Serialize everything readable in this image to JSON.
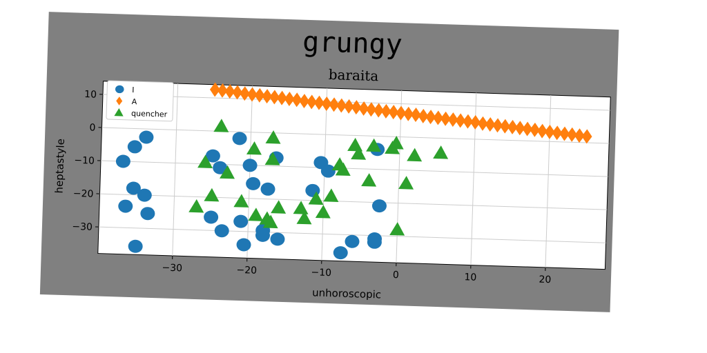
{
  "chart_data": {
    "type": "scatter",
    "title": "grungy",
    "subtitle": "baraita",
    "xlabel": "unhoroscopic",
    "ylabel": "heptastyle",
    "xlim": [
      -40,
      28
    ],
    "ylim": [
      -38,
      14
    ],
    "xticks": [
      -30,
      -20,
      -10,
      0,
      10,
      20
    ],
    "yticks": [
      10,
      0,
      -10,
      -20,
      -30
    ],
    "grid": true,
    "legend_position": "top-left",
    "colors": {
      "figure_background": "#808080",
      "plot_background": "#ffffff",
      "grid": "#cccccc"
    },
    "series": [
      {
        "name": "I",
        "marker": "circle",
        "color": "#1f77b4",
        "points": [
          [
            -37,
            -10
          ],
          [
            -35.5,
            -5.5
          ],
          [
            -34,
            -2.5
          ],
          [
            -35.5,
            -18
          ],
          [
            -34,
            -20
          ],
          [
            -36.5,
            -23.5
          ],
          [
            -33.5,
            -25.5
          ],
          [
            -35,
            -35.5
          ],
          [
            -25,
            -7.5
          ],
          [
            -24,
            -11
          ],
          [
            -25,
            -26
          ],
          [
            -23.5,
            -30
          ],
          [
            -21.5,
            -2
          ],
          [
            -20,
            -10
          ],
          [
            -19.5,
            -15.5
          ],
          [
            -21,
            -27
          ],
          [
            -20.5,
            -34
          ],
          [
            -17.5,
            -17
          ],
          [
            -18,
            -29.5
          ],
          [
            -18,
            -31
          ],
          [
            -16.5,
            -7.5
          ],
          [
            -16,
            -32
          ],
          [
            -10.5,
            -8.5
          ],
          [
            -11.5,
            -17
          ],
          [
            -9.5,
            -11
          ],
          [
            -6,
            -32
          ],
          [
            -7.5,
            -35.5
          ],
          [
            -3,
            -32
          ],
          [
            -3,
            -31
          ],
          [
            -3,
            -4
          ],
          [
            -2.5,
            -21
          ]
        ]
      },
      {
        "name": "A",
        "marker": "diamond",
        "color": "#ff7f0e",
        "points": [
          [
            -25,
            12.5
          ],
          [
            -24,
            12.3
          ],
          [
            -23,
            12.1
          ],
          [
            -22,
            11.9
          ],
          [
            -21,
            11.6
          ],
          [
            -20,
            11.4
          ],
          [
            -19,
            11.2
          ],
          [
            -18,
            11.0
          ],
          [
            -17,
            10.8
          ],
          [
            -16,
            10.6
          ],
          [
            -15,
            10.4
          ],
          [
            -14,
            10.2
          ],
          [
            -13,
            9.9
          ],
          [
            -12,
            9.7
          ],
          [
            -11,
            9.5
          ],
          [
            -10,
            9.3
          ],
          [
            -9,
            9.1
          ],
          [
            -8,
            8.9
          ],
          [
            -7,
            8.7
          ],
          [
            -6,
            8.5
          ],
          [
            -5,
            8.2
          ],
          [
            -4,
            8.0
          ],
          [
            -3,
            7.8
          ],
          [
            -2,
            7.6
          ],
          [
            -1,
            7.4
          ],
          [
            0,
            7.2
          ],
          [
            1,
            7.0
          ],
          [
            2,
            6.8
          ],
          [
            3,
            6.5
          ],
          [
            4,
            6.3
          ],
          [
            5,
            6.1
          ],
          [
            6,
            5.9
          ],
          [
            7,
            5.7
          ],
          [
            8,
            5.5
          ],
          [
            9,
            5.3
          ],
          [
            10,
            5.1
          ],
          [
            11,
            4.8
          ],
          [
            12,
            4.6
          ],
          [
            13,
            4.4
          ],
          [
            14,
            4.2
          ],
          [
            15,
            4.0
          ],
          [
            16,
            3.8
          ],
          [
            17,
            3.6
          ],
          [
            18,
            3.4
          ],
          [
            19,
            3.1
          ],
          [
            20,
            2.9
          ],
          [
            21,
            2.7
          ],
          [
            22,
            2.5
          ],
          [
            23,
            2.3
          ],
          [
            24,
            2.1
          ],
          [
            25,
            1.9
          ]
        ]
      },
      {
        "name": "quencher",
        "marker": "triangle",
        "color": "#2ca02c",
        "points": [
          [
            -24,
            1.5
          ],
          [
            -26,
            -9.5
          ],
          [
            -25,
            -19.5
          ],
          [
            -27,
            -23
          ],
          [
            -23,
            -12.5
          ],
          [
            -19.5,
            -5
          ],
          [
            -21,
            -21
          ],
          [
            -19,
            -25
          ],
          [
            -17,
            -1.5
          ],
          [
            -17,
            -8
          ],
          [
            -17.5,
            -26
          ],
          [
            -17,
            -27
          ],
          [
            -16,
            -22.5
          ],
          [
            -13,
            -22.5
          ],
          [
            -12.5,
            -25.5
          ],
          [
            -11,
            -19.5
          ],
          [
            -10,
            -23.5
          ],
          [
            -9,
            -18.5
          ],
          [
            -8,
            -9
          ],
          [
            -7.5,
            -10.5
          ],
          [
            -6,
            -3
          ],
          [
            -5.5,
            -5.5
          ],
          [
            -4,
            -13.5
          ],
          [
            -3.5,
            -3
          ],
          [
            -1,
            -3.5
          ],
          [
            -0.5,
            -2
          ],
          [
            0,
            -28
          ],
          [
            1,
            -14
          ],
          [
            2,
            -5.5
          ],
          [
            5.5,
            -4.5
          ]
        ]
      }
    ]
  }
}
